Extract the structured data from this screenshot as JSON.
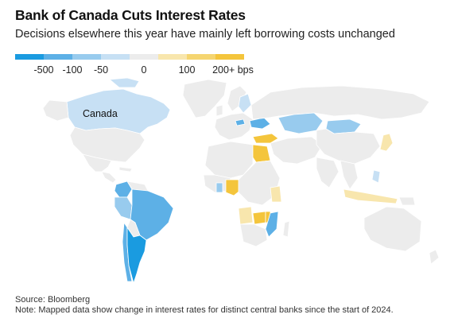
{
  "title": "Bank of Canada Cuts Interest Rates",
  "subtitle": "Decisions elsewhere this year have mainly left borrowing costs unchanged",
  "legend": {
    "swatches": [
      {
        "color": "#1a9be0",
        "range": "≤ -500"
      },
      {
        "color": "#5db0e6",
        "range": "-100"
      },
      {
        "color": "#98cbee",
        "range": "-50"
      },
      {
        "color": "#c7e0f4",
        "range": "0"
      },
      {
        "color": "#ececec",
        "range": "0"
      },
      {
        "color": "#f8e6ad",
        "range": "100"
      },
      {
        "color": "#f5d570",
        "range": "200+"
      },
      {
        "color": "#f4c53c",
        "range": "200+"
      }
    ],
    "labels": [
      "-500",
      "-100",
      "-50",
      "0",
      "100",
      "200+ bps"
    ]
  },
  "map": {
    "label": "Canada",
    "colors": {
      "no_data": "#ececec",
      "border": "#ffffff",
      "cut_large": "#1a9be0",
      "cut_medium": "#5db0e6",
      "cut_small": "#98cbee",
      "cut_slight": "#c7e0f4",
      "hike_small": "#f8e6ad",
      "hike_large": "#f4c53c"
    },
    "regions": [
      {
        "name": "canada",
        "change": "cut_slight"
      },
      {
        "name": "usa",
        "change": "no_data"
      },
      {
        "name": "mexico",
        "change": "no_data"
      },
      {
        "name": "colombia",
        "change": "cut_medium"
      },
      {
        "name": "brazil",
        "change": "cut_medium"
      },
      {
        "name": "peru",
        "change": "cut_small"
      },
      {
        "name": "chile",
        "change": "cut_medium"
      },
      {
        "name": "argentina",
        "change": "cut_large"
      },
      {
        "name": "egypt",
        "change": "hike_large"
      },
      {
        "name": "nigeria",
        "change": "hike_large"
      },
      {
        "name": "ghana",
        "change": "cut_small"
      },
      {
        "name": "angola",
        "change": "hike_small"
      },
      {
        "name": "zambia",
        "change": "hike_large"
      },
      {
        "name": "mozambique",
        "change": "cut_medium"
      },
      {
        "name": "malawi",
        "change": "hike_large"
      },
      {
        "name": "kenya",
        "change": "hike_small"
      },
      {
        "name": "ukraine",
        "change": "cut_medium"
      },
      {
        "name": "turkey",
        "change": "hike_large"
      },
      {
        "name": "kazakhstan",
        "change": "cut_small"
      },
      {
        "name": "mongolia",
        "change": "cut_small"
      },
      {
        "name": "japan",
        "change": "hike_small"
      },
      {
        "name": "indonesia",
        "change": "hike_small"
      },
      {
        "name": "philippines",
        "change": "cut_slight"
      },
      {
        "name": "sweden",
        "change": "cut_slight"
      },
      {
        "name": "czechia",
        "change": "cut_medium"
      }
    ]
  },
  "source": "Source: Bloomberg",
  "note": "Note: Mapped data show change in interest rates for distinct central banks since the start of 2024."
}
